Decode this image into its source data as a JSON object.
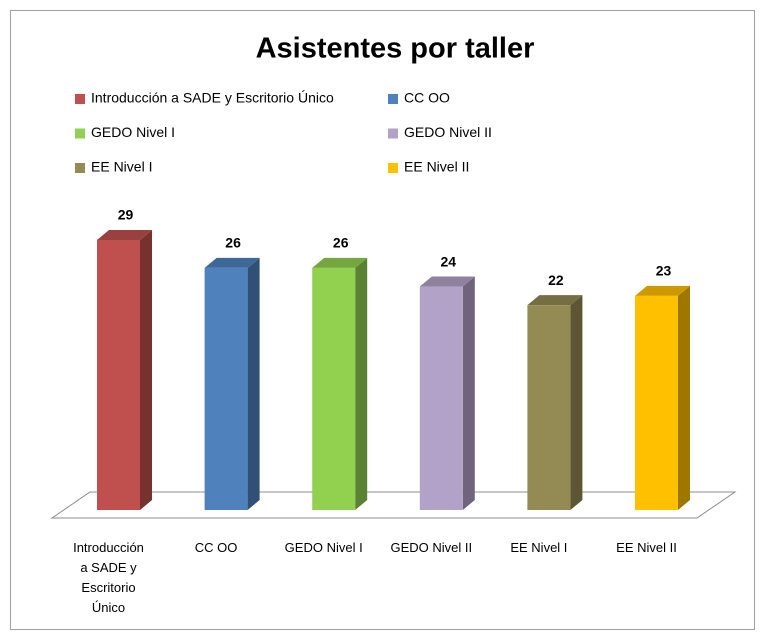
{
  "chart_data": {
    "type": "bar3d",
    "title": "Asistentes por taller",
    "categories": [
      "Introducción a SADE y Escritorio Único",
      "CC OO",
      "GEDO Nivel I",
      "GEDO Nivel II",
      "EE Nivel I",
      "EE Nivel II"
    ],
    "values": [
      29,
      26,
      26,
      24,
      22,
      23
    ],
    "colors": [
      "#c0504d",
      "#4f81bd",
      "#92d050",
      "#b3a2c7",
      "#948a54",
      "#ffc000"
    ],
    "legend": "top"
  }
}
